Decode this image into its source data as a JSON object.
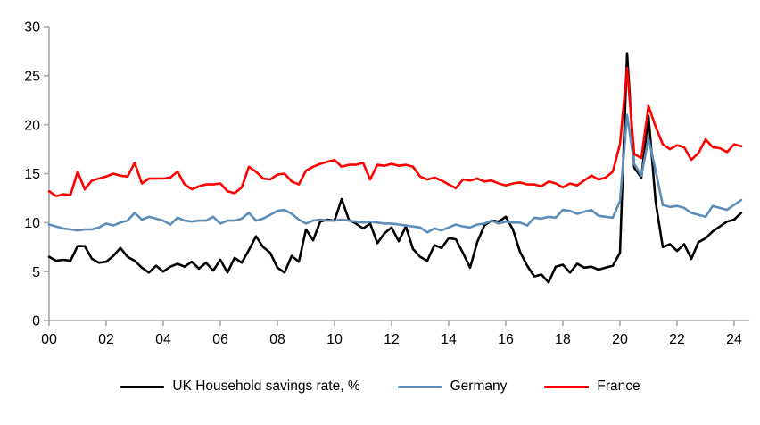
{
  "chart_data": {
    "type": "line",
    "title": "",
    "xlabel": "",
    "ylabel": "",
    "x_start_year": 2000,
    "points_per_year": 4,
    "xlim_years": [
      2000,
      2024.5
    ],
    "ylim": [
      0,
      30
    ],
    "y_ticks": [
      0,
      5,
      10,
      15,
      20,
      25,
      30
    ],
    "x_tick_labels": [
      "00",
      "02",
      "04",
      "06",
      "08",
      "10",
      "12",
      "14",
      "16",
      "18",
      "20",
      "22",
      "24"
    ],
    "grid": false,
    "legend_position": "bottom",
    "axis_color": "#A6A6A6",
    "tick_label_color": "#000000",
    "series": [
      {
        "key": "uk",
        "name": "UK Household savings rate, %",
        "color": "#000000",
        "values": [
          6.5,
          6.1,
          6.2,
          6.1,
          7.6,
          7.6,
          6.3,
          5.9,
          6.0,
          6.6,
          7.4,
          6.5,
          6.1,
          5.4,
          4.9,
          5.6,
          5.0,
          5.5,
          5.8,
          5.5,
          6.0,
          5.3,
          5.9,
          5.1,
          6.2,
          4.9,
          6.4,
          5.9,
          7.2,
          8.6,
          7.5,
          6.9,
          5.4,
          4.9,
          6.6,
          6.0,
          9.3,
          8.2,
          10.1,
          10.3,
          10.2,
          12.4,
          10.3,
          9.9,
          9.4,
          9.9,
          7.9,
          8.9,
          9.5,
          8.1,
          9.6,
          7.3,
          6.5,
          6.1,
          7.7,
          7.4,
          8.4,
          8.3,
          6.9,
          5.4,
          8.0,
          9.7,
          10.2,
          10.1,
          10.6,
          9.3,
          7.0,
          5.6,
          4.5,
          4.7,
          3.9,
          5.5,
          5.7,
          4.9,
          5.8,
          5.4,
          5.5,
          5.2,
          5.4,
          5.6,
          6.9,
          27.3,
          15.6,
          14.6,
          20.9,
          12.1,
          7.5,
          7.8,
          7.1,
          7.8,
          6.3,
          8.0,
          8.4,
          9.1,
          9.6,
          10.1,
          10.3,
          11.0
        ]
      },
      {
        "key": "germany",
        "name": "Germany",
        "color": "#5B8DB8",
        "values": [
          9.8,
          9.6,
          9.4,
          9.3,
          9.2,
          9.3,
          9.3,
          9.5,
          9.9,
          9.7,
          10.0,
          10.2,
          11.0,
          10.3,
          10.6,
          10.4,
          10.2,
          9.8,
          10.5,
          10.2,
          10.1,
          10.2,
          10.2,
          10.6,
          9.9,
          10.2,
          10.2,
          10.4,
          11.0,
          10.2,
          10.4,
          10.8,
          11.2,
          11.3,
          10.9,
          10.3,
          9.9,
          10.2,
          10.3,
          10.2,
          10.2,
          10.3,
          10.2,
          10.1,
          10.0,
          10.1,
          10.0,
          9.9,
          9.9,
          9.8,
          9.7,
          9.6,
          9.5,
          9.0,
          9.4,
          9.2,
          9.5,
          9.8,
          9.6,
          9.5,
          9.8,
          9.9,
          10.2,
          9.9,
          10.1,
          10.0,
          10.0,
          9.7,
          10.5,
          10.4,
          10.6,
          10.5,
          11.3,
          11.2,
          10.9,
          11.1,
          11.3,
          10.7,
          10.6,
          10.5,
          12.2,
          21.0,
          16.0,
          14.8,
          18.6,
          15.3,
          11.8,
          11.6,
          11.7,
          11.5,
          11.0,
          10.8,
          10.6,
          11.7,
          11.5,
          11.3,
          11.8,
          12.3
        ]
      },
      {
        "key": "france",
        "name": "France",
        "color": "#FF0000",
        "values": [
          13.2,
          12.7,
          12.9,
          12.8,
          15.2,
          13.4,
          14.3,
          14.5,
          14.7,
          15.0,
          14.8,
          14.7,
          16.1,
          14.0,
          14.5,
          14.5,
          14.5,
          14.6,
          15.2,
          13.9,
          13.4,
          13.7,
          13.9,
          13.9,
          14.0,
          13.2,
          13.0,
          13.6,
          15.7,
          15.2,
          14.5,
          14.4,
          14.9,
          15.0,
          14.2,
          13.9,
          15.3,
          15.7,
          16.0,
          16.2,
          16.4,
          15.7,
          15.9,
          15.9,
          16.1,
          14.4,
          15.9,
          15.8,
          16.0,
          15.8,
          15.9,
          15.7,
          14.7,
          14.4,
          14.6,
          14.3,
          13.9,
          13.5,
          14.4,
          14.3,
          14.5,
          14.2,
          14.3,
          14.0,
          13.8,
          14.0,
          14.1,
          13.9,
          13.9,
          13.7,
          14.2,
          14.0,
          13.6,
          14.0,
          13.8,
          14.3,
          14.8,
          14.4,
          14.6,
          15.2,
          18.0,
          25.8,
          17.0,
          16.6,
          21.9,
          19.8,
          18.0,
          17.5,
          17.9,
          17.7,
          16.4,
          17.1,
          18.5,
          17.7,
          17.6,
          17.2,
          18.0,
          17.8
        ]
      }
    ]
  }
}
